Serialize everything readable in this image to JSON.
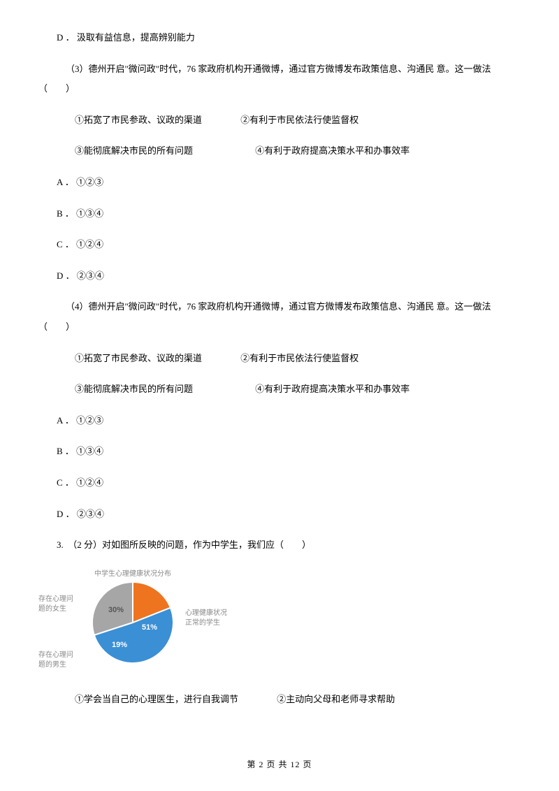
{
  "option_d_top": "D ． 汲取有益信息，提高辨别能力",
  "q3": {
    "stem": "（3）德州开启\"微问政\"时代，76 家政府机构开通微博，通过官方微博发布政策信息、沟通民 意。这一做法（　　）",
    "c1": "①拓宽了市民参政、议政的渠道",
    "c2": "②有利于市民依法行使监督权",
    "c3": "③能彻底解决市民的所有问题",
    "c4": "④有利于政府提高决策水平和办事效率",
    "a": "A ． ①②③",
    "b": "B ． ①③④",
    "c": "C ． ①②④",
    "d": "D ． ②③④"
  },
  "q4": {
    "stem": "（4）德州开启\"微问政\"时代，76 家政府机构开通微博，通过官方微博发布政策信息、沟通民 意。这一做法（　　）",
    "c1": "①拓宽了市民参政、议政的渠道",
    "c2": "②有利于市民依法行使监督权",
    "c3": "③能彻底解决市民的所有问题",
    "c4": "④有利于政府提高决策水平和办事效率",
    "a": "A ． ①②③",
    "b": "B ． ①③④",
    "c": "C ． ①②④",
    "d": "D ． ②③④"
  },
  "q5": {
    "stem": "3.　（2 分）对如图所反映的问题，作为中学生，我们应（　　）",
    "c1": "①学会当自己的心理医生，进行自我调节",
    "c2": "②主动向父母和老师寻求帮助"
  },
  "pie": {
    "title": "中学生心理健康状况分布",
    "slices": [
      {
        "label": "心理健康状况正常的学生",
        "value": 51,
        "color": "#3b8fd4",
        "text": "51%"
      },
      {
        "label": "存在心理问题的女生",
        "value": 30,
        "color": "#a6a6a6",
        "text": "30%"
      },
      {
        "label": "存在心理问题的男生",
        "value": 19,
        "color": "#ee7420",
        "text": "19%"
      }
    ],
    "label_left_top": "存在心理问\n题的女生",
    "label_left_bottom": "存在心理问\n题的男生",
    "label_right": "心理健康状况\n正常的学生"
  },
  "footer": "第 2 页 共 12 页"
}
